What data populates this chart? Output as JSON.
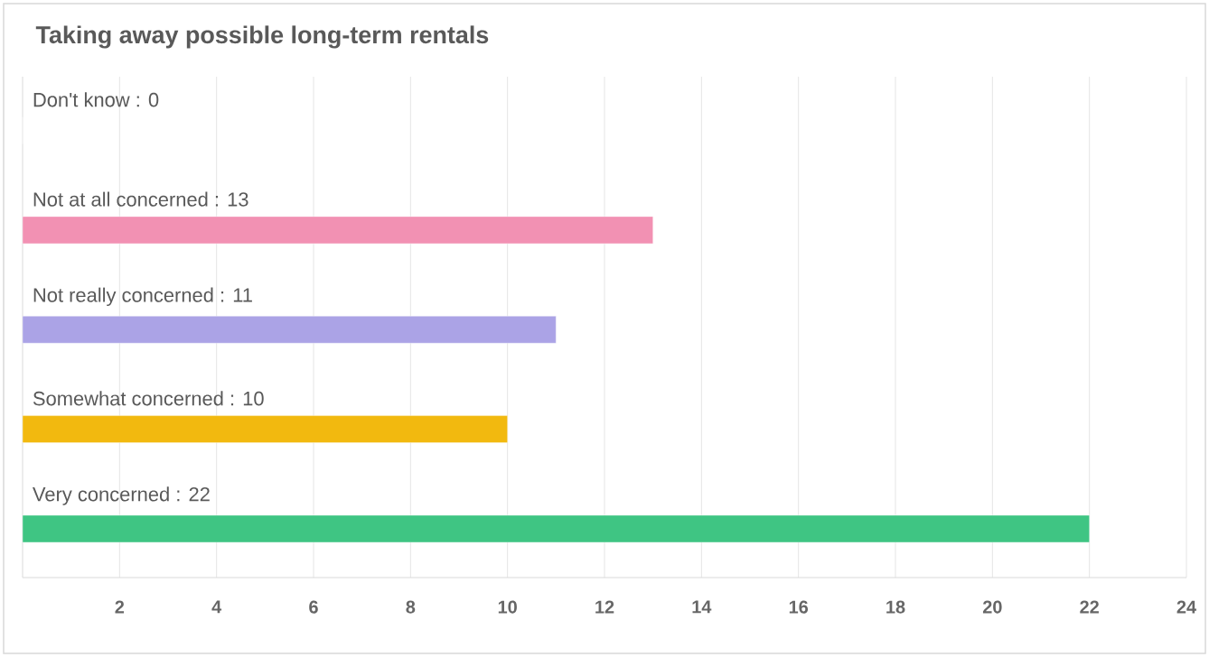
{
  "chart_data": {
    "type": "bar",
    "orientation": "horizontal",
    "title": "Taking away possible long-term rentals",
    "categories": [
      "Don't know : 0",
      "Not at all concerned : 13",
      "Not really concerned : 11",
      "Somewhat concerned : 10",
      "Very concerned : 22"
    ],
    "values": [
      0,
      13,
      11,
      10,
      22
    ],
    "colors": [
      "#dddddd",
      "#f291b3",
      "#aba3e6",
      "#f2b90f",
      "#3fc583"
    ],
    "xlim": [
      0,
      24
    ],
    "xticks": [
      2,
      4,
      6,
      8,
      10,
      12,
      14,
      16,
      18,
      20,
      22,
      24
    ],
    "grid": "x"
  }
}
